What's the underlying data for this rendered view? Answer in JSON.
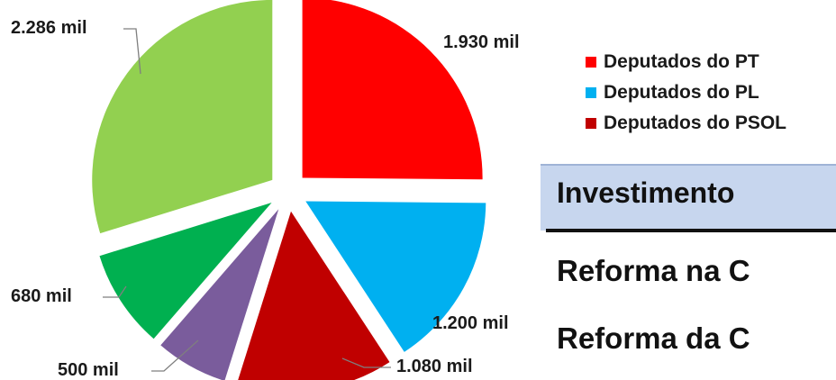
{
  "chart_data": {
    "type": "pie",
    "slices": [
      {
        "label": "1.930 mil",
        "value": 1930,
        "color": "#ff0000"
      },
      {
        "label": "1.200 mil",
        "value": 1200,
        "color": "#00b0f0"
      },
      {
        "label": "1.080 mil",
        "value": 1080,
        "color": "#c00000"
      },
      {
        "label": "500 mil",
        "value": 500,
        "color": "#7a5c9c"
      },
      {
        "label": "680 mil",
        "value": 680,
        "color": "#00b050"
      },
      {
        "label": "2.286 mil",
        "value": 2286,
        "color": "#92d050"
      }
    ],
    "legend": [
      {
        "label": "Deputados do PT",
        "color": "#ff0000"
      },
      {
        "label": "Deputados do PL",
        "color": "#00b0f0"
      },
      {
        "label": "Deputados do PSOL",
        "color": "#c00000"
      }
    ],
    "legend_placement": "right"
  },
  "overlay": {
    "heading": "Investimento",
    "line1": "Reforma na C",
    "line2": "Reforma da C"
  }
}
